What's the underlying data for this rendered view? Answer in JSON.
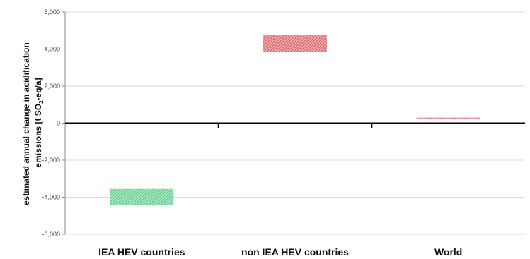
{
  "chart_data": {
    "type": "bar",
    "subtype": "floating-range",
    "categories": [
      "IEA HEV countries",
      "non IEA HEV countries",
      "World"
    ],
    "ranges": [
      {
        "category": "IEA HEV countries",
        "low": -4400,
        "high": -3550,
        "color": "#5cc98a"
      },
      {
        "category": "non IEA HEV countries",
        "low": 3850,
        "high": 4750,
        "color": "#d9545c"
      },
      {
        "category": "World",
        "low": 250,
        "high": 300,
        "color": "#d9545c"
      }
    ],
    "ylabel_line1": "estimated annual change in acidification",
    "ylabel_line2_pre": "emissions  [t SO",
    "ylabel_line2_sub": "2",
    "ylabel_line2_post": "-eq/a]",
    "ylim": [
      -6000,
      6000
    ],
    "yticks": [
      {
        "value": -6000,
        "label": "-6,000"
      },
      {
        "value": -4000,
        "label": "-4,000"
      },
      {
        "value": -2000,
        "label": "-2,000"
      },
      {
        "value": 0,
        "label": "0"
      },
      {
        "value": 2000,
        "label": "2,000"
      },
      {
        "value": 4000,
        "label": "4,000"
      },
      {
        "value": 6000,
        "label": "6,000"
      }
    ],
    "grid": true,
    "pattern": "diagonal-hatch"
  }
}
